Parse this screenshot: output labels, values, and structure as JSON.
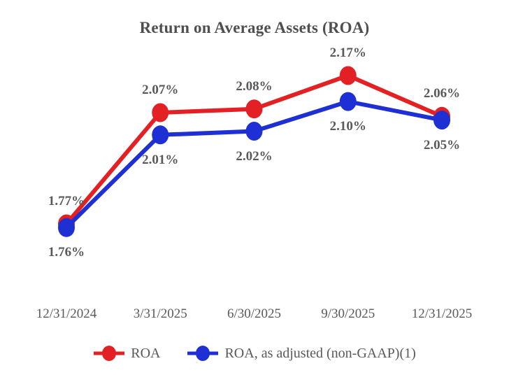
{
  "chart_data": {
    "type": "line",
    "title": "Return on Average Assets (ROA)",
    "xlabel": "",
    "ylabel": "",
    "categories": [
      "12/31/2024",
      "3/31/2025",
      "6/30/2025",
      "9/30/2025",
      "12/31/2025"
    ],
    "series": [
      {
        "name": "ROA",
        "color": "#e32124",
        "values": [
          1.77,
          2.07,
          2.08,
          2.17,
          2.06
        ],
        "point_labels": [
          "1.77%",
          "2.07%",
          "2.08%",
          "2.17%",
          "2.06%"
        ],
        "label_position": "above"
      },
      {
        "name": "ROA, as adjusted (non-GAAP)(1)",
        "color": "#1e30d4",
        "values": [
          1.76,
          2.01,
          2.02,
          2.1,
          2.05
        ],
        "point_labels": [
          "1.76%",
          "2.01%",
          "2.02%",
          "2.10%",
          "2.05%"
        ],
        "label_position": "below"
      }
    ],
    "ylim": [
      1.65,
      2.35
    ],
    "grid": false,
    "axes_visible": false,
    "legend_position": "bottom"
  },
  "colors": {
    "background": "#ffffff",
    "title_text": "#4f4f4f",
    "label_text": "#595959",
    "series_red": "#e32124",
    "series_blue": "#1e30d4"
  }
}
